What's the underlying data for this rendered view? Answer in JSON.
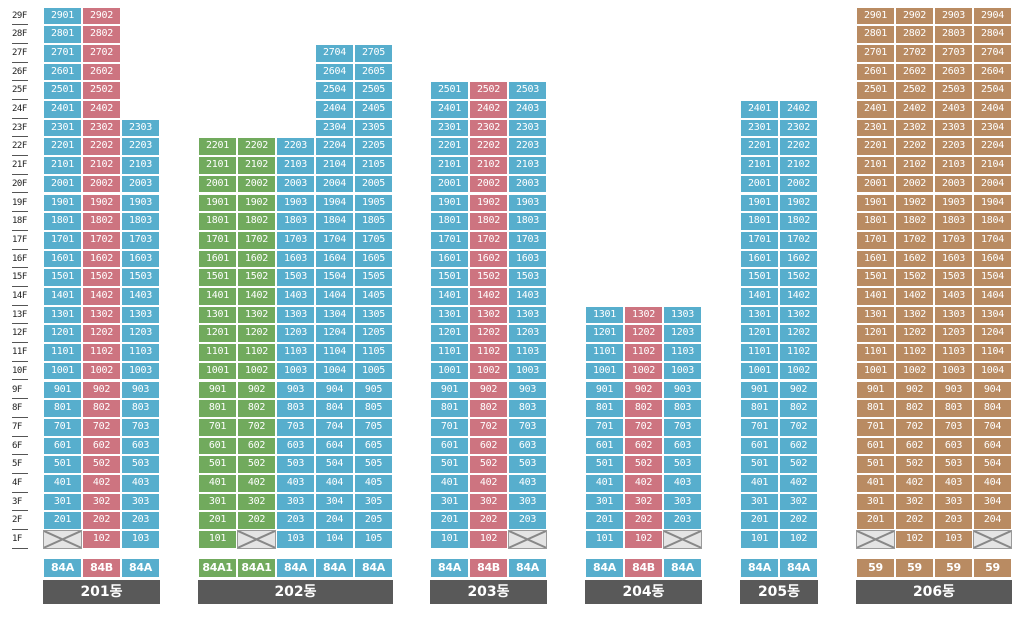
{
  "floor_labels": [
    "1F",
    "2F",
    "3F",
    "4F",
    "5F",
    "6F",
    "7F",
    "8F",
    "9F",
    "10F",
    "11F",
    "12F",
    "13F",
    "14F",
    "15F",
    "16F",
    "17F",
    "18F",
    "19F",
    "20F",
    "21F",
    "22F",
    "23F",
    "24F",
    "25F",
    "26F",
    "27F",
    "28F",
    "29F"
  ],
  "colors": {
    "blue": "#57aecd",
    "pink": "#cd7480",
    "green": "#71aa5d",
    "brown": "#b98b62",
    "empty": "#e4e4e4",
    "label": "#595959"
  },
  "buildings": [
    {
      "name": "201동",
      "types": [
        "84A",
        "84B",
        "84A"
      ],
      "type_colors": [
        "blue",
        "pink",
        "blue"
      ],
      "cell_colors": [
        "blue",
        "pink",
        "blue"
      ],
      "columns": [
        {
          "unit": "01",
          "top_floor": 29,
          "empty_floors": [
            1
          ]
        },
        {
          "unit": "02",
          "top_floor": 29,
          "empty_floors": []
        },
        {
          "unit": "03",
          "top_floor": 23,
          "empty_floors": []
        }
      ]
    },
    {
      "name": "202동",
      "types": [
        "84A1",
        "84A1",
        "84A",
        "84A",
        "84A"
      ],
      "type_colors": [
        "green",
        "green",
        "blue",
        "blue",
        "blue"
      ],
      "cell_colors": [
        "green",
        "green",
        "blue",
        "blue",
        "blue"
      ],
      "columns": [
        {
          "unit": "01",
          "top_floor": 22,
          "empty_floors": []
        },
        {
          "unit": "02",
          "top_floor": 22,
          "empty_floors": [
            1
          ]
        },
        {
          "unit": "03",
          "top_floor": 22,
          "empty_floors": []
        },
        {
          "unit": "04",
          "top_floor": 27,
          "empty_floors": []
        },
        {
          "unit": "05",
          "top_floor": 27,
          "empty_floors": []
        }
      ]
    },
    {
      "name": "203동",
      "types": [
        "84A",
        "84B",
        "84A"
      ],
      "type_colors": [
        "blue",
        "pink",
        "blue"
      ],
      "cell_colors": [
        "blue",
        "pink",
        "blue"
      ],
      "columns": [
        {
          "unit": "01",
          "top_floor": 25,
          "empty_floors": []
        },
        {
          "unit": "02",
          "top_floor": 25,
          "empty_floors": []
        },
        {
          "unit": "03",
          "top_floor": 25,
          "empty_floors": [
            1
          ]
        }
      ]
    },
    {
      "name": "204동",
      "types": [
        "84A",
        "84B",
        "84A"
      ],
      "type_colors": [
        "blue",
        "pink",
        "blue"
      ],
      "cell_colors": [
        "blue",
        "pink",
        "blue"
      ],
      "columns": [
        {
          "unit": "01",
          "top_floor": 13,
          "empty_floors": []
        },
        {
          "unit": "02",
          "top_floor": 13,
          "empty_floors": []
        },
        {
          "unit": "03",
          "top_floor": 13,
          "empty_floors": [
            1
          ]
        }
      ]
    },
    {
      "name": "205동",
      "types": [
        "84A",
        "84A"
      ],
      "type_colors": [
        "blue",
        "blue"
      ],
      "cell_colors": [
        "blue",
        "blue"
      ],
      "columns": [
        {
          "unit": "01",
          "top_floor": 24,
          "empty_floors": []
        },
        {
          "unit": "02",
          "top_floor": 24,
          "empty_floors": []
        }
      ]
    },
    {
      "name": "206동",
      "types": [
        "59",
        "59",
        "59",
        "59"
      ],
      "type_colors": [
        "brown",
        "brown",
        "brown",
        "brown"
      ],
      "cell_colors": [
        "brown",
        "brown",
        "brown",
        "brown"
      ],
      "columns": [
        {
          "unit": "01",
          "top_floor": 29,
          "empty_floors": [
            1
          ]
        },
        {
          "unit": "02",
          "top_floor": 29,
          "empty_floors": []
        },
        {
          "unit": "03",
          "top_floor": 29,
          "empty_floors": []
        },
        {
          "unit": "04",
          "top_floor": 29,
          "empty_floors": [
            1
          ]
        }
      ]
    }
  ]
}
